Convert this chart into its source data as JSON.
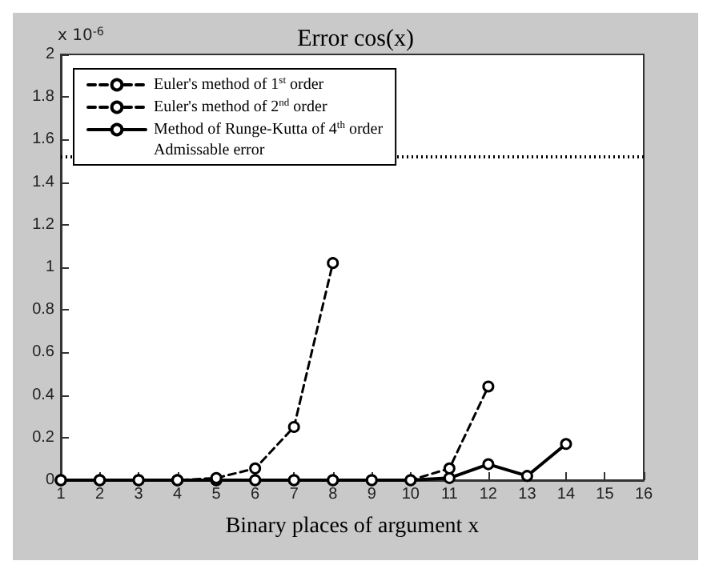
{
  "chart_data": {
    "type": "line",
    "title": "Error cos(x)",
    "xlabel": "Binary places of argument x",
    "annotations": [
      "x 10$^{-6}$"
    ],
    "series": [
      {
        "name": "Euler's method of 1$^{st}$ order",
        "color": "#000000",
        "line_style": "dashed",
        "x": [
          1,
          2,
          3,
          4,
          5,
          6,
          7,
          8
        ],
        "values": [
          0,
          0,
          0,
          0,
          0.01,
          0.055,
          0.25,
          1.02
        ]
      },
      {
        "name": "Euler's method of 2$^{nd}$ order",
        "color": "#000000",
        "line_style": "dashed",
        "x": [
          1,
          2,
          3,
          4,
          5,
          6,
          7,
          8,
          9,
          10,
          11,
          12
        ],
        "values": [
          0,
          0,
          0,
          0,
          0,
          0,
          0,
          0,
          0,
          0,
          0.055,
          0.44
        ]
      },
      {
        "name": "Method of Runge-Kutta of 4$^{th}$ order",
        "color": "#000000",
        "line_style": "solid",
        "x": [
          1,
          2,
          3,
          4,
          5,
          6,
          7,
          8,
          9,
          10,
          11,
          12,
          13,
          14
        ],
        "values": [
          0,
          0,
          0,
          0,
          0,
          0,
          0,
          0,
          0,
          0,
          0.01,
          0.075,
          0.02,
          0.17
        ]
      }
    ],
    "ref_lines": [
      {
        "axis": "y",
        "value": 1.52,
        "label": "Admissable error",
        "color": "#000000",
        "line_style": "dotted"
      }
    ],
    "xlim": [
      1,
      16
    ],
    "xticks": [
      1,
      2,
      3,
      4,
      5,
      6,
      7,
      8,
      9,
      10,
      11,
      12,
      13,
      14,
      15,
      16
    ],
    "ylim": [
      0,
      2
    ],
    "yticks": [
      0,
      0.2,
      0.4,
      0.6,
      0.8,
      1,
      1.2,
      1.4,
      1.6,
      1.8,
      2
    ],
    "grid": false,
    "legend": "top left",
    "marker": "circle"
  }
}
